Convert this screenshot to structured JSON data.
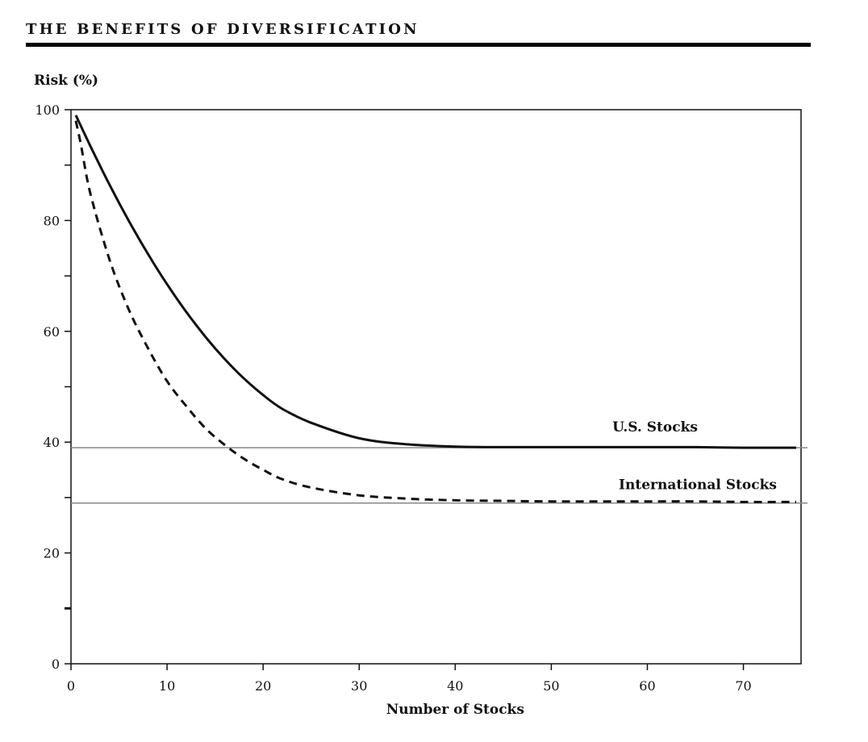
{
  "chart_data": {
    "type": "line",
    "title": "THE BENEFITS OF DIVERSIFICATION",
    "xlabel": "Number of Stocks",
    "ylabel": "Risk (%)",
    "xlim": [
      0,
      76
    ],
    "ylim": [
      0,
      100
    ],
    "x_ticks": [
      0,
      10,
      20,
      30,
      40,
      50,
      60,
      70
    ],
    "y_ticks_labeled": [
      0,
      20,
      40,
      60,
      80,
      100
    ],
    "y_ticks_minor": [
      10,
      30,
      50,
      70,
      90
    ],
    "grid": false,
    "series": [
      {
        "name": "U.S. Stocks",
        "style": "solid",
        "color": "#111111",
        "x": [
          0.5,
          2,
          4,
          6,
          8,
          10,
          12,
          14,
          16,
          18,
          20,
          22,
          25,
          30,
          35,
          40,
          45,
          50,
          55,
          60,
          65,
          70,
          75.5
        ],
        "y": [
          99,
          93.5,
          86.5,
          80,
          74,
          68.5,
          63.5,
          59,
          55,
          51.5,
          48.5,
          46,
          43.5,
          40.7,
          39.6,
          39.2,
          39.1,
          39.1,
          39.1,
          39.1,
          39.1,
          39.0,
          39.0
        ]
      },
      {
        "name": "International Stocks",
        "style": "dashed",
        "color": "#111111",
        "x": [
          0.5,
          1,
          2,
          4,
          6,
          8,
          10,
          12,
          14,
          16,
          18,
          20,
          22,
          25,
          30,
          35,
          40,
          45,
          50,
          55,
          60,
          65,
          70,
          75.5
        ],
        "y": [
          98,
          94,
          85,
          73,
          64,
          57,
          51,
          46.5,
          42.5,
          39.5,
          37,
          35,
          33.3,
          31.8,
          30.4,
          29.8,
          29.5,
          29.4,
          29.3,
          29.3,
          29.3,
          29.3,
          29.2,
          29.2
        ]
      }
    ],
    "reference_lines": [
      {
        "y": 39,
        "color": "#888888"
      },
      {
        "y": 29,
        "color": "#888888"
      }
    ]
  }
}
